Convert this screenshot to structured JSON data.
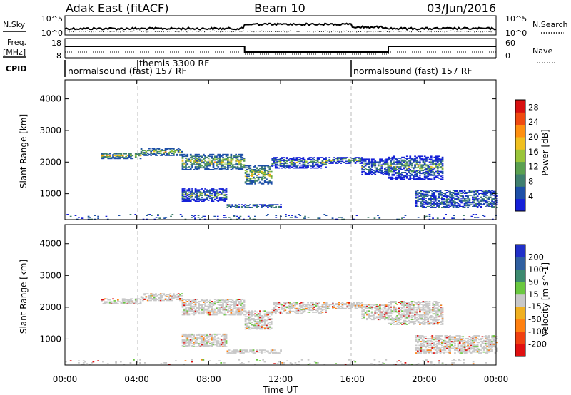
{
  "header": {
    "station": "Adak East (fitACF)",
    "beam": "Beam 10",
    "date": "03/Jun/2016"
  },
  "panels": {
    "nsky_label": "N.Sky",
    "nsky_ticks": [
      "10^5",
      "10^0"
    ],
    "nsearch_label": "N.Search",
    "freq_label_1": "Freq.",
    "freq_label_2": "[MHz]",
    "freq_ticks": [
      "18",
      "8"
    ],
    "nave_label": "Nave",
    "nave_ticks": [
      "60",
      "0"
    ],
    "cpid_label": "CPID",
    "cpid_segments": [
      {
        "label": "normalsound (fast) 157 RF",
        "start_h": 0,
        "end_h": 4
      },
      {
        "label": "themis 3300 RF",
        "start_h": 4,
        "end_h": 16
      },
      {
        "label": "normalsound (fast) 157 RF",
        "start_h": 16,
        "end_h": 24
      }
    ]
  },
  "chart_data": [
    {
      "type": "heatmap",
      "name": "power",
      "xlabel": "Time UT",
      "ylabel": "Slant Range [km]",
      "x_ticks": [
        "00:00",
        "04:00",
        "08:00",
        "12:00",
        "16:00",
        "20:00",
        "00:00"
      ],
      "xlim_hours": [
        0,
        24
      ],
      "y_ticks": [
        1000,
        2000,
        3000,
        4000
      ],
      "ylim": [
        180,
        4600
      ],
      "colorbar_label": "Power [dB]",
      "colorbar_ticks": [
        4,
        8,
        12,
        16,
        20,
        24,
        28
      ],
      "colorbar_range": [
        0,
        30
      ],
      "colorbar_colors": [
        "#1520d8",
        "#1d4fa8",
        "#3f7f6f",
        "#5aa050",
        "#9ac53a",
        "#f0c020",
        "#ff9010",
        "#f04a10",
        "#d81010"
      ],
      "echo_bands": [
        {
          "t0": 2.0,
          "t1": 4.2,
          "r0": 2100,
          "r1": 2280
        },
        {
          "t0": 4.2,
          "t1": 6.5,
          "r0": 2200,
          "r1": 2420
        },
        {
          "t0": 6.5,
          "t1": 10.0,
          "r0": 1750,
          "r1": 2250
        },
        {
          "t0": 10.0,
          "t1": 11.5,
          "r0": 1300,
          "r1": 1900
        },
        {
          "t0": 11.5,
          "t1": 14.5,
          "r0": 1800,
          "r1": 2150
        },
        {
          "t0": 14.5,
          "t1": 16.5,
          "r0": 1950,
          "r1": 2150
        },
        {
          "t0": 16.5,
          "t1": 18.0,
          "r0": 1600,
          "r1": 2100
        },
        {
          "t0": 18.0,
          "t1": 21.0,
          "r0": 1450,
          "r1": 2200
        },
        {
          "t0": 6.5,
          "t1": 9.0,
          "r0": 750,
          "r1": 1150
        },
        {
          "t0": 19.5,
          "t1": 24.0,
          "r0": 550,
          "r1": 1100
        },
        {
          "t0": 9.0,
          "t1": 12.0,
          "r0": 550,
          "r1": 650
        },
        {
          "t0": 0.0,
          "t1": 24.0,
          "r0": 180,
          "r1": 340
        }
      ]
    },
    {
      "type": "heatmap",
      "name": "velocity",
      "xlabel": "Time UT",
      "ylabel": "Slant Range [km]",
      "x_ticks": [
        "00:00",
        "04:00",
        "08:00",
        "12:00",
        "16:00",
        "20:00",
        "00:00"
      ],
      "xlim_hours": [
        0,
        24
      ],
      "y_ticks": [
        1000,
        2000,
        3000,
        4000
      ],
      "ylim": [
        180,
        4600
      ],
      "colorbar_label": "Velocity [m s^-1]",
      "colorbar_ticks": [
        200,
        100,
        50,
        15,
        -15,
        -50,
        -100,
        -200
      ],
      "colorbar_colors": [
        "#2030c8",
        "#2f5fa0",
        "#3d8a70",
        "#6ac840",
        "#c8c8c8",
        "#f0b020",
        "#ff8010",
        "#f04010",
        "#e01010"
      ],
      "echo_bands": [
        {
          "t0": 2.0,
          "t1": 4.2,
          "r0": 2100,
          "r1": 2280
        },
        {
          "t0": 4.2,
          "t1": 6.5,
          "r0": 2200,
          "r1": 2420
        },
        {
          "t0": 6.5,
          "t1": 10.0,
          "r0": 1750,
          "r1": 2250
        },
        {
          "t0": 10.0,
          "t1": 11.5,
          "r0": 1300,
          "r1": 1900
        },
        {
          "t0": 11.5,
          "t1": 14.5,
          "r0": 1800,
          "r1": 2150
        },
        {
          "t0": 14.5,
          "t1": 16.5,
          "r0": 1950,
          "r1": 2150
        },
        {
          "t0": 16.5,
          "t1": 18.0,
          "r0": 1600,
          "r1": 2100
        },
        {
          "t0": 18.0,
          "t1": 21.0,
          "r0": 1450,
          "r1": 2200
        },
        {
          "t0": 6.5,
          "t1": 9.0,
          "r0": 750,
          "r1": 1150
        },
        {
          "t0": 19.5,
          "t1": 24.0,
          "r0": 550,
          "r1": 1100
        },
        {
          "t0": 9.0,
          "t1": 12.0,
          "r0": 550,
          "r1": 650
        },
        {
          "t0": 0.0,
          "t1": 24.0,
          "r0": 180,
          "r1": 340
        }
      ]
    }
  ]
}
